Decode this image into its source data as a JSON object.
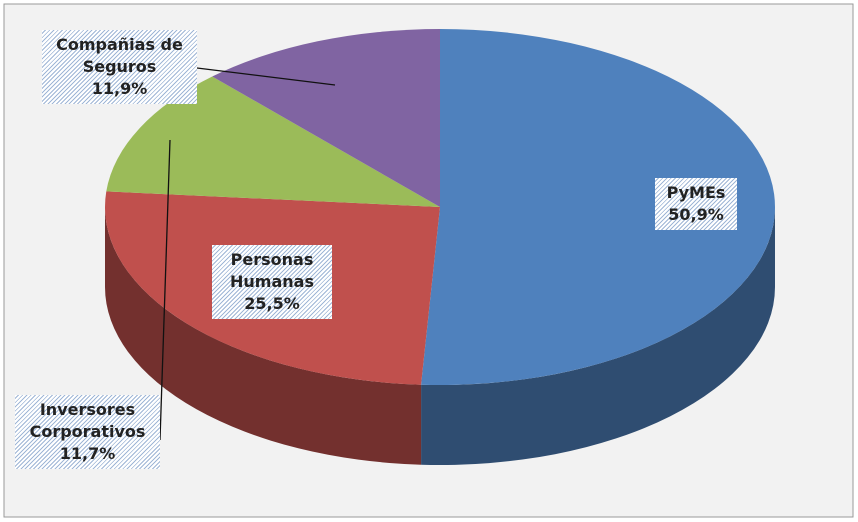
{
  "chart_data": {
    "type": "pie",
    "categories": [
      "PyMEs",
      "Personas Humanas",
      "Inversores Corporativos",
      "Compañias de Seguros"
    ],
    "values": [
      50.9,
      25.5,
      11.7,
      11.9
    ],
    "value_labels": [
      "50,9%",
      "25,5%",
      "11,7%",
      "11,9%"
    ],
    "colors": [
      "#4f81bd",
      "#c0504d",
      "#9bbb59",
      "#8064a2"
    ]
  }
}
